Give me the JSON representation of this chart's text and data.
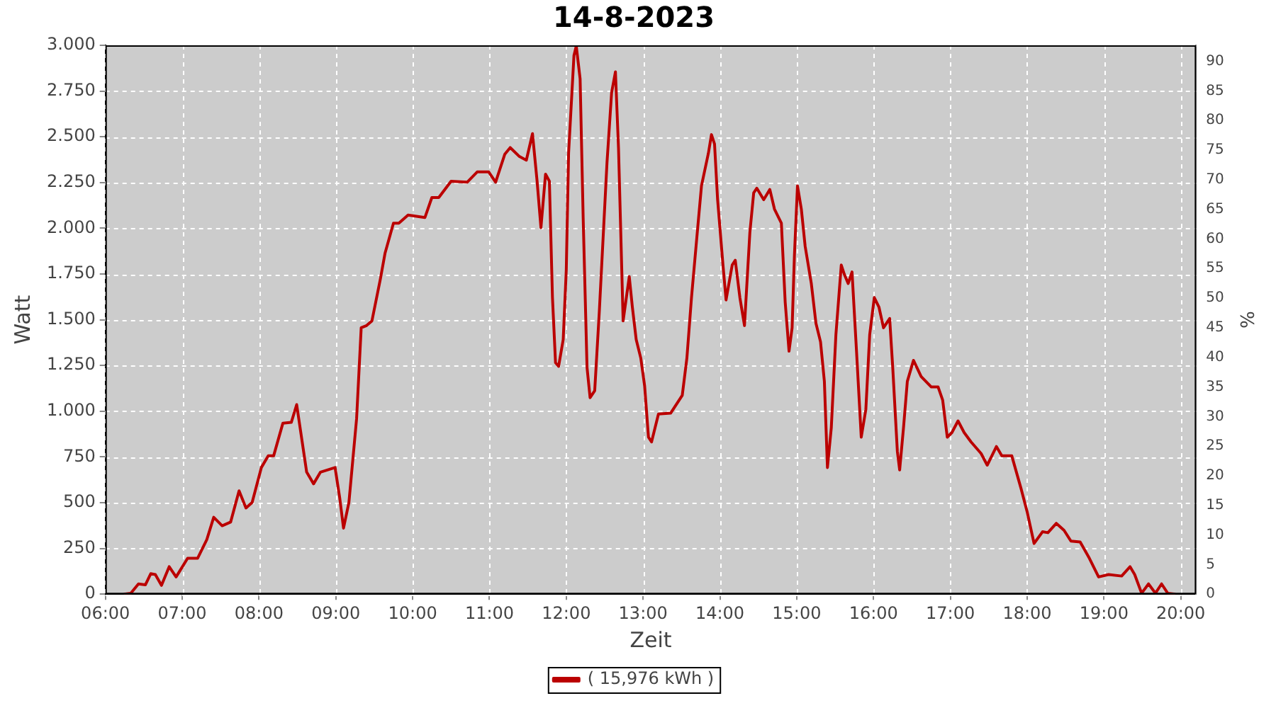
{
  "chart_data": {
    "type": "line",
    "title": "14-8-2023",
    "xlabel": "Zeit",
    "ylabel": "Watt",
    "y2label": "%",
    "xlim": [
      6,
      20.2
    ],
    "xticks": [
      {
        "value": 6,
        "label": "06:00"
      },
      {
        "value": 7,
        "label": "07:00"
      },
      {
        "value": 8,
        "label": "08:00"
      },
      {
        "value": 9,
        "label": "09:00"
      },
      {
        "value": 10,
        "label": "10:00"
      },
      {
        "value": 11,
        "label": "11:00"
      },
      {
        "value": 12,
        "label": "12:00"
      },
      {
        "value": 13,
        "label": "13:00"
      },
      {
        "value": 14,
        "label": "14:00"
      },
      {
        "value": 15,
        "label": "15:00"
      },
      {
        "value": 16,
        "label": "16:00"
      },
      {
        "value": 17,
        "label": "17:00"
      },
      {
        "value": 18,
        "label": "18:00"
      },
      {
        "value": 19,
        "label": "19:00"
      },
      {
        "value": 20,
        "label": "20:00"
      }
    ],
    "ylim": [
      0,
      3000
    ],
    "yticks": [
      0,
      250,
      500,
      750,
      {
        "value": 1000,
        "label": "1.000"
      },
      {
        "value": 1250,
        "label": "1.250"
      },
      {
        "value": 1500,
        "label": "1.500"
      },
      {
        "value": 1750,
        "label": "1.750"
      },
      {
        "value": 2000,
        "label": "2.000"
      },
      {
        "value": 2250,
        "label": "2.250"
      },
      {
        "value": 2500,
        "label": "2.500"
      },
      {
        "value": 2750,
        "label": "2.750"
      },
      {
        "value": 3000,
        "label": "3.000"
      }
    ],
    "y2lim": [
      0,
      92.7
    ],
    "y2ticks": [
      0,
      5,
      10,
      15,
      20,
      25,
      30,
      35,
      40,
      45,
      50,
      55,
      60,
      65,
      70,
      75,
      80,
      85,
      90
    ],
    "grid": true,
    "legend": "bottom",
    "series": [
      {
        "name": "( 15,976 kWh )",
        "color": "#bb0000",
        "x": [
          6.24,
          6.33,
          6.43,
          6.52,
          6.59,
          6.65,
          6.73,
          6.83,
          6.92,
          7.07,
          7.2,
          7.32,
          7.41,
          7.52,
          7.63,
          7.74,
          7.83,
          7.91,
          8.03,
          8.12,
          8.19,
          8.31,
          8.42,
          8.49,
          8.62,
          8.71,
          8.8,
          8.99,
          9.05,
          9.1,
          9.17,
          9.27,
          9.33,
          9.4,
          9.47,
          9.58,
          9.64,
          9.75,
          9.82,
          9.94,
          10.16,
          10.25,
          10.34,
          10.5,
          10.71,
          10.84,
          10.99,
          11.08,
          11.2,
          11.27,
          11.39,
          11.48,
          11.56,
          11.62,
          11.67,
          11.73,
          11.78,
          11.82,
          11.86,
          11.9,
          11.96,
          12,
          12.03,
          12.1,
          12.13,
          12.18,
          12.22,
          12.27,
          12.31,
          12.37,
          12.43,
          12.53,
          12.59,
          12.64,
          12.68,
          12.74,
          12.82,
          12.86,
          12.91,
          12.97,
          13.02,
          13.07,
          13.11,
          13.2,
          13.36,
          13.51,
          13.57,
          13.63,
          13.7,
          13.76,
          13.85,
          13.89,
          13.93,
          13.97,
          14.04,
          14.08,
          14.16,
          14.2,
          14.26,
          14.32,
          14.39,
          14.44,
          14.48,
          14.57,
          14.65,
          14.71,
          14.8,
          14.85,
          14.9,
          14.94,
          14.97,
          15.01,
          15.06,
          15.11,
          15.19,
          15.25,
          15.31,
          15.36,
          15.4,
          15.45,
          15.51,
          15.58,
          15.62,
          15.67,
          15.72,
          15.78,
          15.84,
          15.9,
          15.95,
          16.01,
          16.07,
          16.13,
          16.21,
          16.25,
          16.31,
          16.34,
          16.39,
          16.44,
          16.52,
          16.62,
          16.75,
          16.84,
          16.9,
          16.96,
          17.02,
          17.1,
          17.18,
          17.27,
          17.4,
          17.48,
          17.6,
          17.67,
          17.8,
          17.92,
          18,
          18.09,
          18.2,
          18.27,
          18.38,
          18.48,
          18.57,
          18.69,
          18.81,
          18.93,
          19.06,
          19.23,
          19.34,
          19.4,
          19.49,
          19.58,
          19.67,
          19.75,
          19.83,
          19.93
        ],
        "values": [
          0,
          5,
          56,
          51,
          112,
          107,
          48,
          150,
          94,
          196,
          196,
          298,
          420,
          374,
          394,
          565,
          471,
          501,
          692,
          756,
          756,
          934,
          939,
          1036,
          667,
          603,
          667,
          692,
          527,
          361,
          501,
          959,
          1456,
          1468,
          1494,
          1723,
          1863,
          2028,
          2028,
          2072,
          2059,
          2168,
          2168,
          2257,
          2252,
          2308,
          2308,
          2252,
          2405,
          2441,
          2392,
          2372,
          2517,
          2257,
          2003,
          2296,
          2257,
          1621,
          1265,
          1245,
          1392,
          1774,
          2410,
          2945,
          2996,
          2817,
          2054,
          1239,
          1074,
          1112,
          1545,
          2359,
          2741,
          2855,
          2436,
          1494,
          1736,
          1570,
          1392,
          1290,
          1138,
          858,
          832,
          985,
          990,
          1087,
          1290,
          1621,
          1952,
          2232,
          2410,
          2512,
          2461,
          2156,
          1799,
          1608,
          1799,
          1825,
          1621,
          1468,
          1977,
          2194,
          2219,
          2156,
          2212,
          2105,
          2028,
          1596,
          1328,
          1456,
          1850,
          2232,
          2105,
          1901,
          1698,
          1481,
          1379,
          1163,
          692,
          909,
          1418,
          1799,
          1748,
          1698,
          1761,
          1316,
          858,
          1010,
          1418,
          1621,
          1570,
          1456,
          1507,
          1239,
          781,
          679,
          909,
          1163,
          1278,
          1189,
          1133,
          1133,
          1061,
          858,
          883,
          947,
          883,
          832,
          769,
          705,
          807,
          756,
          756,
          578,
          450,
          277,
          341,
          336,
          387,
          349,
          290,
          285,
          196,
          94,
          107,
          99,
          150,
          107,
          5,
          56,
          5,
          56,
          5,
          0
        ]
      }
    ]
  }
}
